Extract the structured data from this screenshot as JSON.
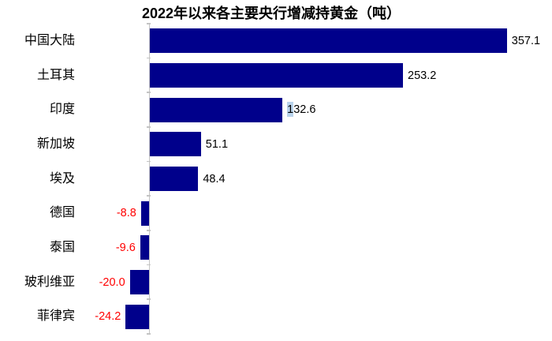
{
  "figure": {
    "background_color": "#FFFFFF"
  },
  "chart_data": {
    "type": "bar",
    "orientation": "horizontal",
    "title": "2022年以来各主要央行增减持黄金（吨）",
    "unit": "吨",
    "categories": [
      "中国大陆",
      "土耳其",
      "印度",
      "新加坡",
      "埃及",
      "德国",
      "泰国",
      "玻利维亚",
      "菲律宾"
    ],
    "values": [
      357.1,
      253.2,
      132.6,
      51.1,
      48.4,
      -8.8,
      -9.6,
      -20.0,
      -24.2
    ],
    "value_labels": [
      "357.1",
      "253.2",
      "132.6",
      "51.1",
      "48.4",
      "-8.8",
      "-9.6",
      "-20.0",
      "-24.2"
    ],
    "xlim": [
      -40,
      400
    ],
    "grid": "off",
    "legend": "none",
    "bar_color": "#00008B",
    "positive_label_color": "#000000",
    "negative_label_color": "#FF0000",
    "axis_color": "#C4C4C4",
    "selection_highlight": {
      "category": "印度",
      "text": "1",
      "color": "#B9D3EC"
    }
  }
}
